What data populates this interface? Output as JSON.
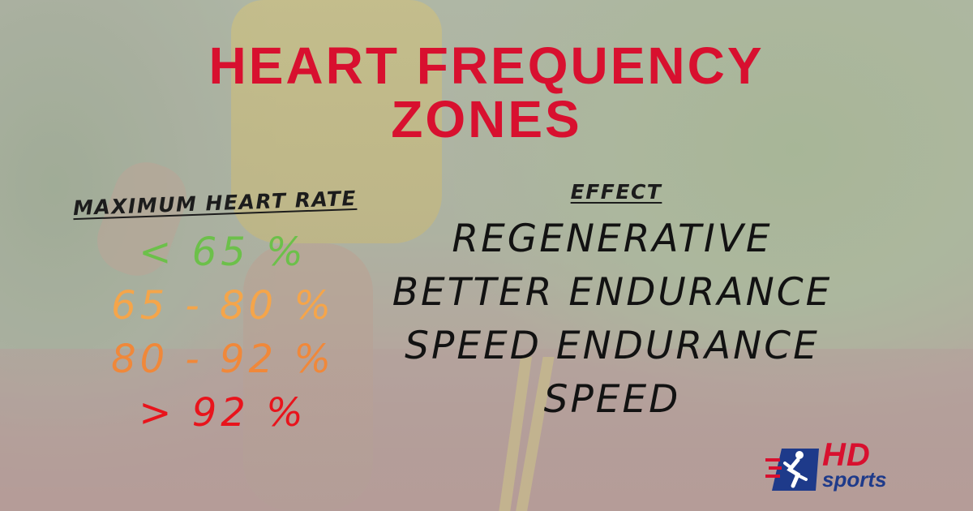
{
  "title": {
    "line1": "HEART FREQUENCY",
    "line2": "ZONES"
  },
  "columns": {
    "rate_header": "MAXIMUM HEART RATE",
    "effect_header": "EFFECT"
  },
  "zones": [
    {
      "rate": "< 65 %",
      "effect": "REGENERATIVE",
      "color": "#6cc04a"
    },
    {
      "rate": "65 - 80 %",
      "effect": "BETTER ENDURANCE",
      "color": "#f5a54a"
    },
    {
      "rate": "80 - 92 %",
      "effect": "SPEED ENDURANCE",
      "color": "#f0883a"
    },
    {
      "rate": "> 92 %",
      "effect": "SPEED",
      "color": "#e8141c"
    }
  ],
  "logo": {
    "hd": "HD",
    "sports": "sports",
    "icon": "runner-logo-icon"
  },
  "colors": {
    "title": "#d8102f",
    "text": "#121212",
    "logo_blue": "#1e3a8a"
  }
}
